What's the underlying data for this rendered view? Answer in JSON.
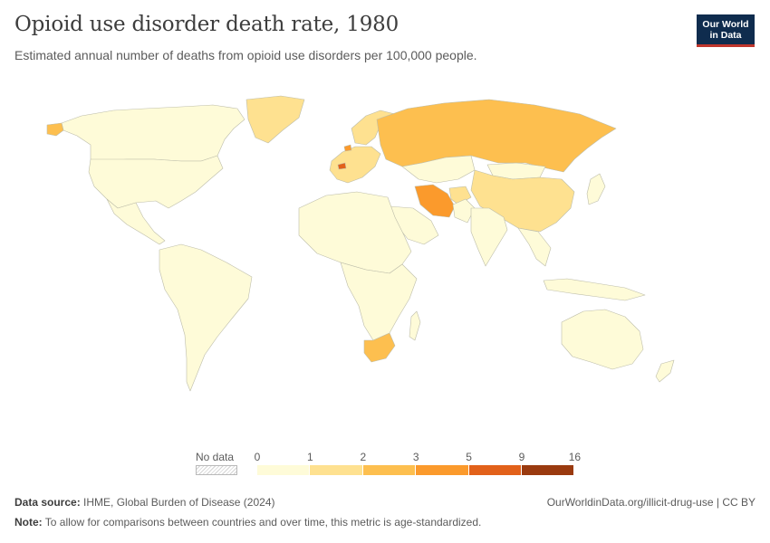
{
  "header": {
    "title": "Opioid use disorder death rate, 1980",
    "subtitle": "Estimated annual number of deaths from opioid use disorders per 100,000 people.",
    "logo_line1": "Our World",
    "logo_line2": "in Data"
  },
  "legend": {
    "no_data_label": "No data",
    "ticks": [
      "0",
      "1",
      "2",
      "3",
      "5",
      "9",
      "16"
    ],
    "colors": [
      "#fefbd8",
      "#fee190",
      "#fdbf4f",
      "#fb9a2c",
      "#e2611a",
      "#9a3a0f"
    ]
  },
  "map_data": {
    "type": "choropleth",
    "metric": "Opioid use disorder death rate per 100,000 (age-standardized)",
    "year": 1980,
    "regions": [
      {
        "name": "Russia",
        "bin": 2
      },
      {
        "name": "Iran",
        "bin": 3
      },
      {
        "name": "Greenland",
        "bin": 1
      },
      {
        "name": "China",
        "bin": 1
      },
      {
        "name": "South Africa",
        "bin": 2
      },
      {
        "name": "Switzerland",
        "bin": 4
      },
      {
        "name": "Netherlands",
        "bin": 3
      },
      {
        "name": "Kazakhstan",
        "bin": 0
      },
      {
        "name": "Mongolia",
        "bin": 0
      },
      {
        "name": "Canada",
        "bin": 0
      },
      {
        "name": "United States",
        "bin": 0
      },
      {
        "name": "Brazil",
        "bin": 0
      },
      {
        "name": "Australia",
        "bin": 0
      },
      {
        "name": "India",
        "bin": 0
      },
      {
        "name": "Algeria",
        "bin": 0
      },
      {
        "name": "Saudi Arabia",
        "bin": 0
      },
      {
        "name": "Afghanistan",
        "bin": 1
      },
      {
        "name": "Pakistan",
        "bin": 0
      },
      {
        "name": "Scandinavia",
        "bin": 1
      },
      {
        "name": "Ukraine",
        "bin": 1
      },
      {
        "name": "Japan",
        "bin": 0
      },
      {
        "name": "Alaska",
        "bin": 2
      }
    ]
  },
  "footer": {
    "source_label": "Data source:",
    "source_text": "IHME, Global Burden of Disease (2024)",
    "url_text": "OurWorldinData.org/illicit-drug-use | CC BY",
    "note_label": "Note:",
    "note_text": "To allow for comparisons between countries and over time, this metric is age-standardized."
  }
}
